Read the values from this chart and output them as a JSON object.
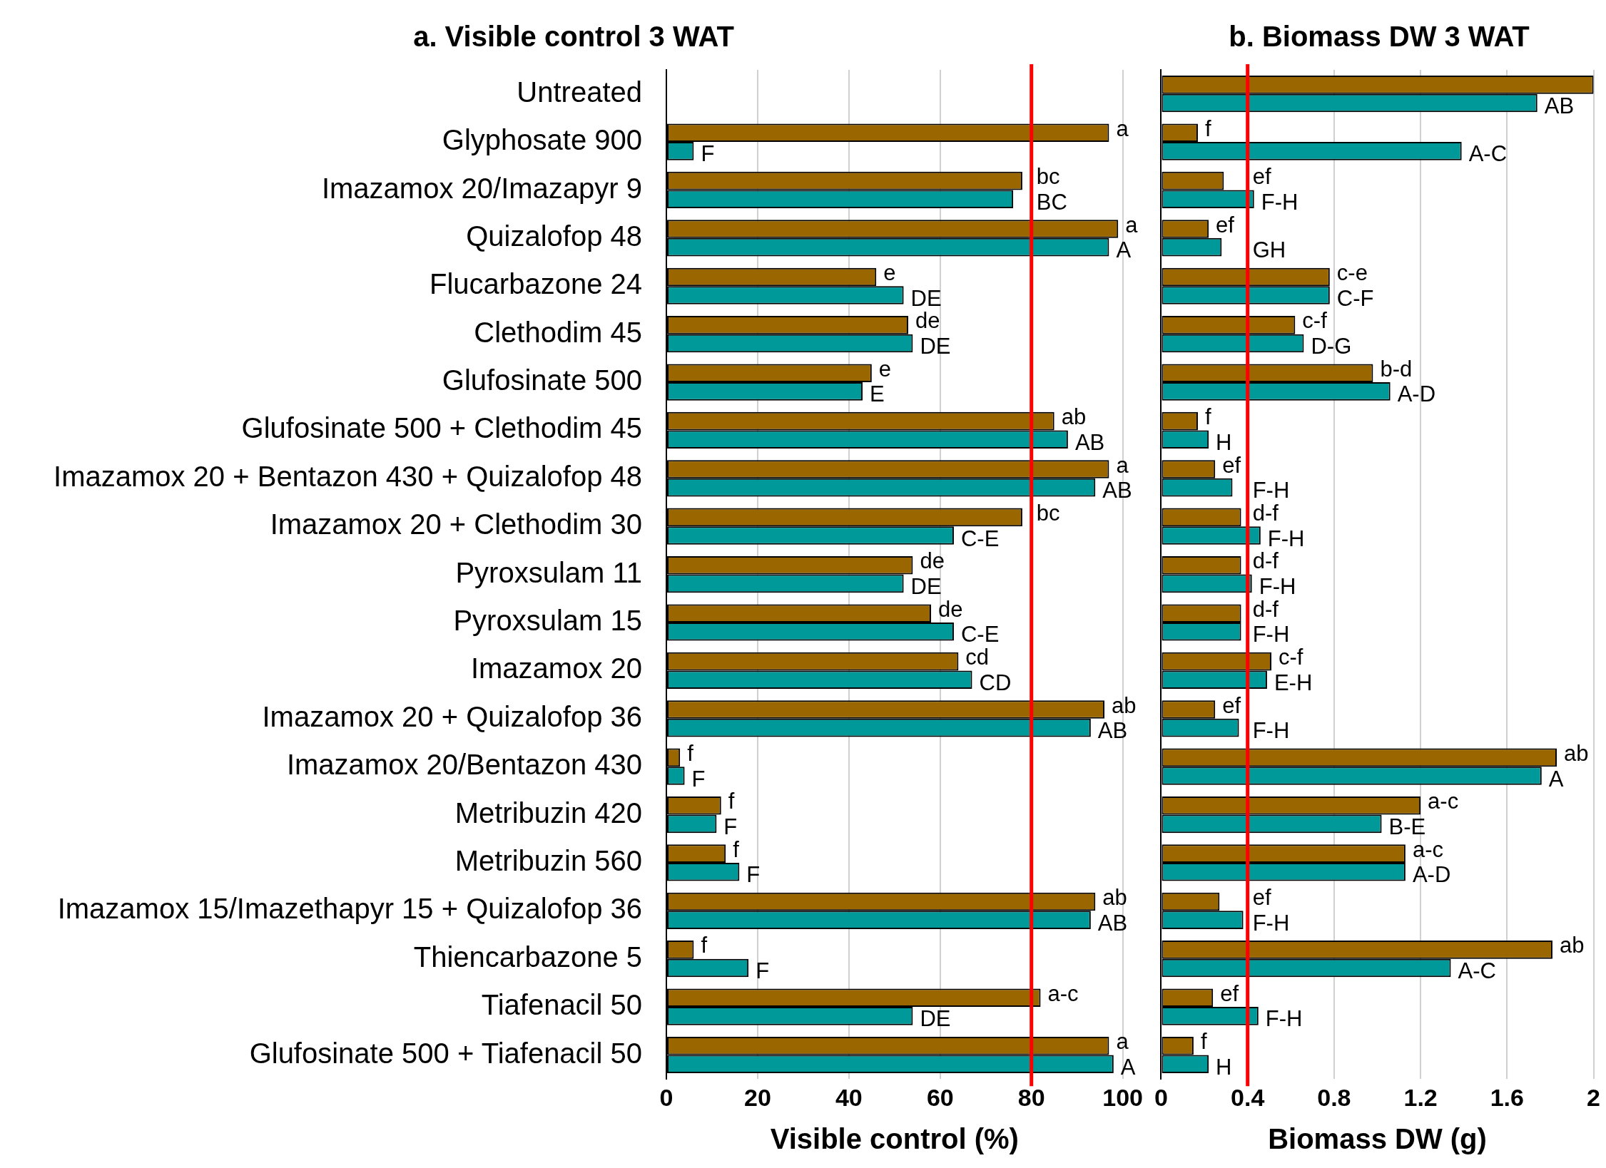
{
  "chart_data": [
    {
      "type": "bar",
      "orientation": "horizontal",
      "title": "a. Visible control 3 WAT",
      "xlabel": "Visible control (%)",
      "categories": [
        "Untreated",
        "Glyphosate 900",
        "Imazamox 20/Imazapyr 9",
        "Quizalofop 48",
        "Flucarbazone 24",
        "Clethodim 45",
        "Glufosinate 500",
        "Glufosinate 500 + Clethodim 45",
        "Imazamox 20 + Bentazon 430 + Quizalofop 48",
        "Imazamox 20 + Clethodim 30",
        "Pyroxsulam 11",
        "Pyroxsulam 15",
        "Imazamox 20",
        "Imazamox 20 + Quizalofop 36",
        "Imazamox 20/Bentazon 430",
        "Metribuzin 420",
        "Metribuzin 560",
        "Imazamox 15/Imazethapyr 15 + Quizalofop 36",
        "Thiencarbazone 5",
        "Tiafenacil 50",
        "Glufosinate 500 + Tiafenacil 50"
      ],
      "series": [
        {
          "color": "#996600",
          "values": [
            null,
            97,
            78,
            99,
            46,
            53,
            45,
            85,
            97,
            78,
            54,
            58,
            64,
            96,
            3,
            12,
            13,
            94,
            6,
            82,
            97
          ],
          "value_labels": [
            null,
            "a",
            "bc",
            "a",
            "e",
            "de",
            "e",
            "ab",
            "a",
            "bc",
            "de",
            "de",
            "cd",
            "ab",
            "f",
            "f",
            "f",
            "ab",
            "f",
            "a-c",
            "a"
          ]
        },
        {
          "color": "#009999",
          "values": [
            null,
            6,
            76,
            97,
            52,
            54,
            43,
            88,
            94,
            63,
            52,
            63,
            67,
            93,
            4,
            11,
            16,
            93,
            18,
            54,
            98
          ],
          "value_labels": [
            null,
            "F",
            "BC",
            "A",
            "DE",
            "DE",
            "E",
            "AB",
            "AB",
            "C-E",
            "DE",
            "C-E",
            "CD",
            "AB",
            "F",
            "F",
            "F",
            "AB",
            "F",
            "DE",
            "A"
          ]
        }
      ],
      "xlim": [
        0,
        100
      ],
      "xticks": [
        0,
        20,
        40,
        60,
        80,
        100
      ],
      "grid": "x",
      "ref_lines": [
        {
          "axis": "x",
          "value": 80,
          "color": "#ff0000"
        }
      ]
    },
    {
      "type": "bar",
      "orientation": "horizontal",
      "title": "b. Biomass DW 3 WAT",
      "xlabel": "Biomass DW (g)",
      "tick_labels": "x",
      "categories": [
        null,
        null,
        null,
        null,
        null,
        null,
        null,
        null,
        null,
        null,
        null,
        null,
        null,
        null,
        null,
        null,
        null,
        null,
        null,
        null,
        null
      ],
      "series": [
        {
          "color": "#996600",
          "values": [
            2.0,
            0.17,
            0.29,
            0.22,
            0.78,
            0.62,
            0.98,
            0.17,
            0.25,
            0.37,
            0.37,
            0.37,
            0.51,
            0.25,
            1.83,
            1.2,
            1.13,
            0.27,
            1.81,
            0.24,
            0.15
          ],
          "value_labels": [
            null,
            "f",
            "ef",
            "ef",
            "c-e",
            "c-f",
            "b-d",
            "f",
            "ef",
            "d-f",
            "d-f",
            "d-f",
            "c-f",
            "ef",
            "ab",
            "a-c",
            "a-c",
            "ef",
            "ab",
            "ef",
            "f"
          ]
        },
        {
          "color": "#009999",
          "values": [
            1.74,
            1.39,
            0.43,
            0.28,
            0.78,
            0.66,
            1.06,
            0.22,
            0.33,
            0.46,
            0.42,
            0.37,
            0.49,
            0.36,
            1.76,
            1.02,
            1.13,
            0.38,
            1.34,
            0.45,
            0.22
          ],
          "value_labels": [
            "AB",
            "A-C",
            "F-H",
            "GH",
            "C-F",
            "D-G",
            "A-D",
            "H",
            "F-H",
            "F-H",
            "F-H",
            "F-H",
            "E-H",
            "F-H",
            "A",
            "B-E",
            "A-D",
            "F-H",
            "A-C",
            "F-H",
            "H"
          ]
        }
      ],
      "xlim": [
        0,
        2
      ],
      "xticks": [
        0,
        0.4,
        0.8,
        1.2,
        1.6,
        2
      ],
      "grid": "x",
      "ref_lines": [
        {
          "axis": "x",
          "value": 0.4,
          "color": "#ff0000"
        }
      ]
    }
  ]
}
